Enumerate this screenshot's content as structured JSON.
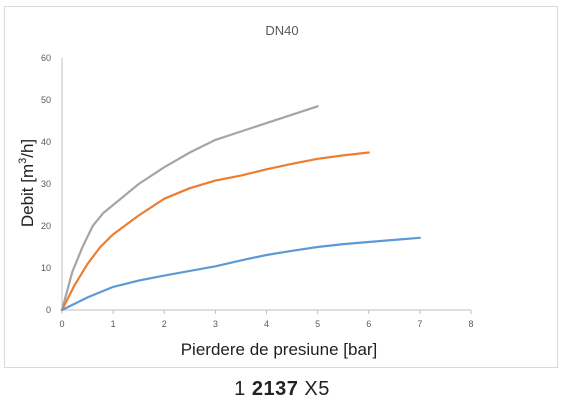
{
  "chart_data": {
    "type": "line",
    "title": "DN40",
    "xlabel": "Pierdere de presiune [bar]",
    "ylabel_main": "Debit [m",
    "ylabel_sup": "3",
    "ylabel_end": "/h]",
    "xlim": [
      0,
      8
    ],
    "ylim": [
      0,
      60
    ],
    "xticks": [
      "0",
      "1",
      "2",
      "3",
      "4",
      "5",
      "6",
      "7",
      "8"
    ],
    "yticks": [
      "0",
      "10",
      "20",
      "30",
      "40",
      "50",
      "60"
    ],
    "grid": false,
    "series": [
      {
        "color": "#a5a5a5",
        "x": [
          0,
          0.2,
          0.4,
          0.6,
          0.8,
          1.0,
          1.5,
          2.0,
          2.5,
          3.0,
          3.5,
          4.0,
          4.5,
          5.0
        ],
        "y": [
          0,
          9,
          15,
          20,
          23,
          25,
          30,
          34,
          37.5,
          40.5,
          42.5,
          44.5,
          46.5,
          48.5
        ]
      },
      {
        "color": "#ed7d31",
        "x": [
          0,
          0.25,
          0.5,
          0.75,
          1.0,
          1.5,
          2.0,
          2.5,
          3.0,
          3.5,
          4.0,
          4.5,
          5.0,
          5.5,
          6.0
        ],
        "y": [
          0,
          6,
          11,
          15,
          18,
          22.5,
          26.5,
          29,
          30.8,
          32,
          33.5,
          34.8,
          36,
          36.8,
          37.5
        ]
      },
      {
        "color": "#5b9bd5",
        "x": [
          0,
          0.5,
          1.0,
          1.5,
          2.0,
          2.5,
          3.0,
          3.5,
          4.0,
          4.5,
          5.0,
          5.5,
          6.0,
          6.5,
          7.0
        ],
        "y": [
          0,
          3,
          5.5,
          7,
          8.2,
          9.3,
          10.4,
          11.8,
          13.1,
          14.1,
          15,
          15.7,
          16.2,
          16.7,
          17.2
        ]
      }
    ]
  },
  "caption": {
    "prefix": "1 ",
    "bold": "2137",
    "suffix": " X5"
  }
}
